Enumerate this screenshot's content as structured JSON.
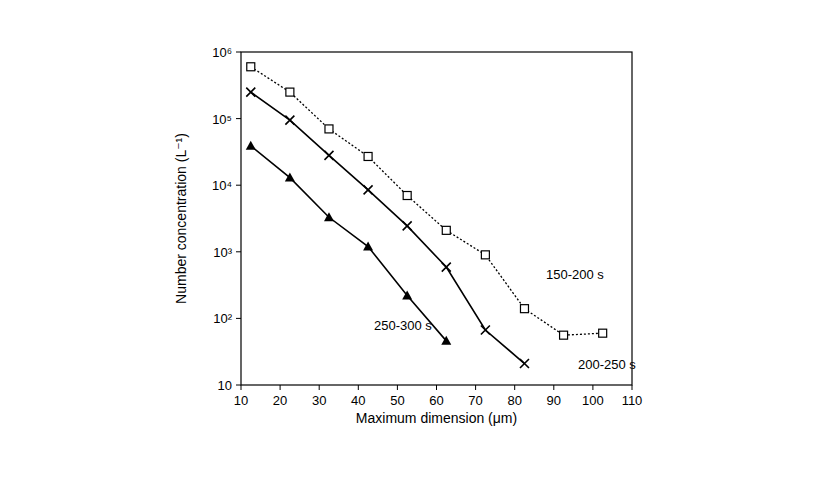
{
  "chart_data": {
    "type": "line",
    "x_label": "Maximum dimension (μm)",
    "y_label": "Number concentration (L⁻¹)",
    "log": "y",
    "grid": false,
    "xlim": [
      10,
      110
    ],
    "xticks": [
      10,
      20,
      30,
      40,
      50,
      60,
      70,
      80,
      90,
      100,
      110
    ],
    "ylim": [
      10,
      1000000
    ],
    "yticks": [
      10,
      {
        "value": 100,
        "label": "10²"
      },
      {
        "value": 1000,
        "label": "10³"
      },
      {
        "value": 10000,
        "label": "10⁴"
      },
      {
        "value": 100000,
        "label": "10⁵"
      },
      {
        "value": 1000000,
        "label": "10⁶"
      }
    ],
    "series": [
      {
        "name": "150-200 s",
        "color": "#000000",
        "marker": "square",
        "line_style": "dotted",
        "x": [
          12.5,
          22.5,
          32.5,
          42.5,
          52.5,
          62.5,
          72.5,
          82.5,
          92.5,
          102.5
        ],
        "values": [
          600000,
          250000,
          70000,
          27000,
          7000,
          2100,
          900,
          140,
          56,
          60
        ]
      },
      {
        "name": "200-250 s",
        "color": "#000000",
        "marker": "x",
        "line_style": "solid",
        "x": [
          12.5,
          22.5,
          32.5,
          42.5,
          52.5,
          62.5,
          72.5,
          82.5
        ],
        "values": [
          250000,
          95000,
          28000,
          8500,
          2450,
          590,
          67,
          21
        ]
      },
      {
        "name": "250-300 s",
        "color": "#000000",
        "marker": "triangle",
        "line_style": "solid",
        "x": [
          12.5,
          22.5,
          32.5,
          42.5,
          52.5,
          62.5
        ],
        "values": [
          39000,
          13000,
          3300,
          1200,
          220,
          46
        ]
      }
    ]
  }
}
